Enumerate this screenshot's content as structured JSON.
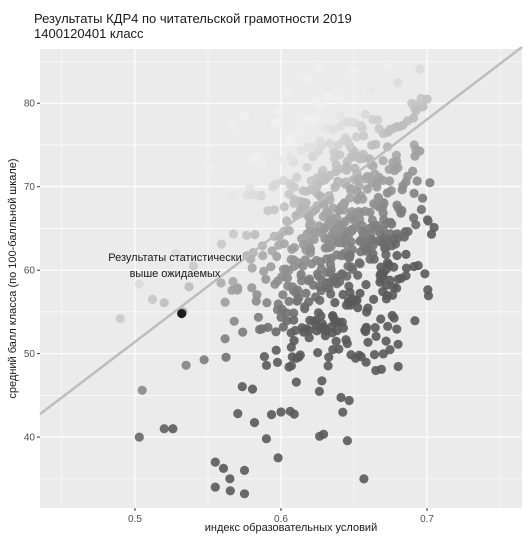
{
  "title_lines": [
    "Результаты КДР4 по читательской грамотности 2019",
    "1400120401 класс"
  ],
  "chart_data": {
    "type": "scatter",
    "xlabel": "индекс образовательных условий",
    "ylabel": "средний балл класса (по 100-балльной шкале)",
    "xlim": [
      0.435,
      0.765
    ],
    "ylim": [
      31.5,
      86.5
    ],
    "x_ticks": [
      0.5,
      0.6,
      0.7
    ],
    "y_ticks": [
      40,
      50,
      60,
      70,
      80
    ],
    "grid": true,
    "regression_line": {
      "intercept": -15.24,
      "slope": 133.3
    },
    "highlight_point": {
      "x": 0.532,
      "y": 54.8
    },
    "annotation": [
      "Результаты статистически",
      "выше ожидаемых"
    ],
    "colors": {
      "panel_bg": "#ebebeb",
      "grid": "#ffffff",
      "line": "#bdbdbd",
      "highlight": "#1c1c1c",
      "point_light": "#f0f0f0",
      "point_dark": "#5a5a5a"
    }
  }
}
